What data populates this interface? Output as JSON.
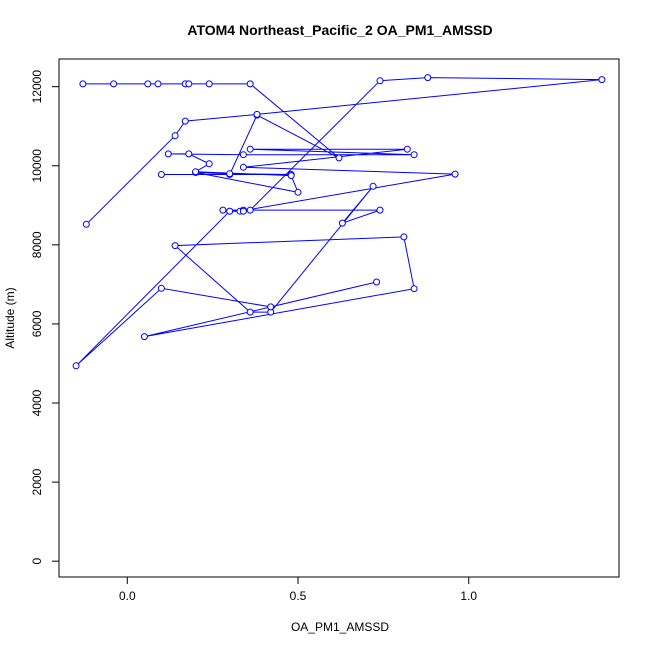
{
  "chart_data": {
    "type": "line",
    "title": "ATOM4 Northeast_Pacific_2 OA_PM1_AMSSD",
    "xlabel": "OA_PM1_AMSSD",
    "ylabel": "Altitude (m)",
    "xlim": [
      -0.2,
      1.44
    ],
    "ylim": [
      -400,
      12700
    ],
    "xticks": [
      0.0,
      0.5,
      1.0
    ],
    "xtick_labels": [
      "0.0",
      "0.5",
      "1.0"
    ],
    "yticks": [
      0,
      2000,
      4000,
      6000,
      8000,
      10000,
      12000
    ],
    "ytick_labels": [
      "0",
      "2000",
      "4000",
      "6000",
      "8000",
      "10000",
      "12000"
    ],
    "grid": false,
    "series": [
      {
        "color": "#0000ff",
        "marker": "open-circle",
        "x": [
          -0.13,
          -0.04,
          0.06,
          0.09,
          0.17,
          0.18,
          0.24,
          0.36,
          0.62,
          0.38,
          0.3,
          0.1,
          0.48,
          0.3,
          0.2,
          0.5,
          0.48,
          0.2,
          0.24,
          0.18,
          0.12,
          0.34,
          0.84,
          0.36,
          0.82,
          0.34,
          0.96,
          0.33,
          0.3,
          0.34,
          0.74,
          0.63,
          0.72,
          0.42,
          0.36,
          0.14,
          0.81,
          0.84,
          0.05,
          0.73,
          0.42,
          0.1,
          -0.15,
          0.3,
          0.34,
          0.28,
          0.36,
          0.74,
          0.88,
          1.39,
          0.38,
          0.17,
          0.14,
          -0.12
        ],
        "y": [
          12070,
          12070,
          12070,
          12070,
          12070,
          12070,
          12070,
          12070,
          10200,
          11280,
          9780,
          9780,
          9780,
          9800,
          9830,
          9330,
          9750,
          9850,
          10050,
          10300,
          10300,
          10280,
          10280,
          10420,
          10420,
          9960,
          9790,
          8850,
          8850,
          8880,
          8880,
          8550,
          9480,
          6300,
          6300,
          7980,
          8200,
          6890,
          5680,
          7060,
          6430,
          6900,
          4940,
          8850,
          8850,
          8880,
          8880,
          12150,
          12230,
          12180,
          11300,
          11130,
          10760,
          8520
        ]
      }
    ]
  }
}
